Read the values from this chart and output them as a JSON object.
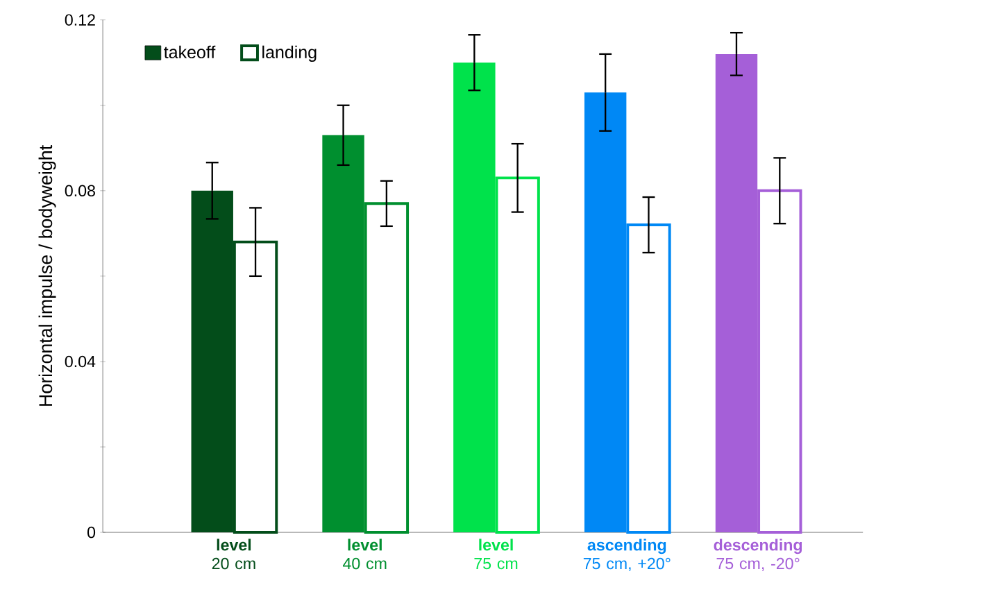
{
  "chart_data": {
    "type": "bar",
    "ylabel": "Horizontal  impulse / bodyweight",
    "categories": [
      "**level**\n20 cm",
      "**level**\n40 cm",
      "**level**\n75 cm",
      "**ascending**\n75 cm, +20°",
      "**descending**\n75 cm, -20°"
    ],
    "series": [
      {
        "name": "takeoff",
        "colors": [
          "#034d1a",
          "#008f2f",
          "#00e24b",
          "#0088f5",
          "#a55fd8"
        ],
        "values": [
          0.08,
          0.093,
          0.11,
          0.103,
          0.112
        ],
        "errors": [
          0.0066,
          0.007,
          0.0065,
          0.009,
          0.005
        ]
      },
      {
        "name": "landing",
        "colors": [
          "#034d1a",
          "#008f2f",
          "#00e24b",
          "#0088f5",
          "#a55fd8"
        ],
        "values": [
          0.068,
          0.077,
          0.083,
          0.072,
          0.08
        ],
        "errors": [
          0.008,
          0.0053,
          0.008,
          0.0065,
          0.0077
        ]
      }
    ],
    "ylim": [
      0,
      0.12
    ],
    "yticks": [
      0,
      {
        "value": 0.02,
        "label": null
      },
      0.04,
      {
        "value": 0.06,
        "label": null
      },
      0.08,
      {
        "value": 0.1,
        "label": null
      },
      0.12
    ],
    "legend": "top left"
  }
}
